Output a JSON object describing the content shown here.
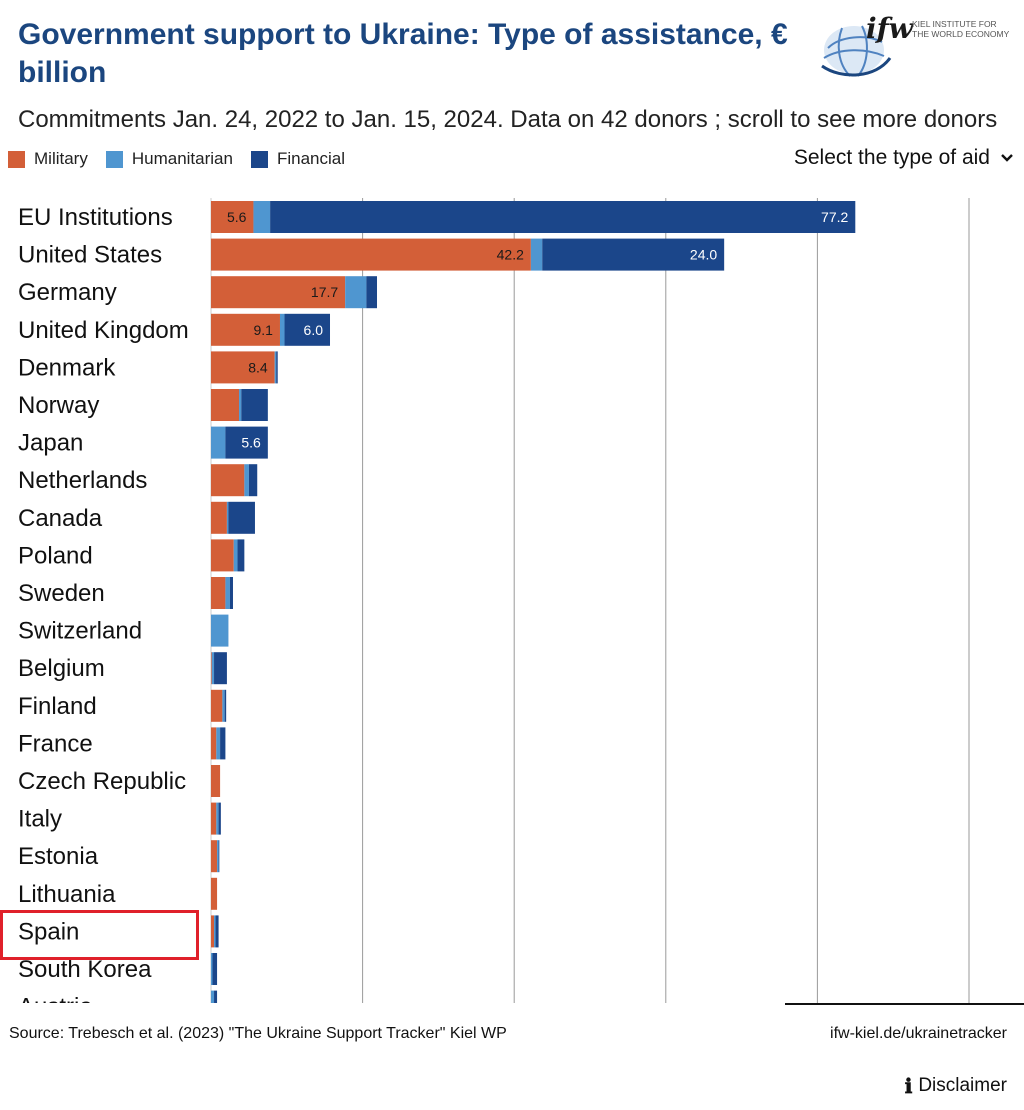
{
  "header": {
    "title": "Government support to Ukraine:  Type of assistance, € billion",
    "subtitle": "Commitments Jan. 24, 2022 to Jan. 15, 2024. Data on 42 donors ; scroll to see more donors"
  },
  "logo": {
    "mark": "ifw",
    "line1": "KIEL INSTITUTE FOR",
    "line2": "THE WORLD ECONOMY",
    "icon": "globe-icon"
  },
  "legend": [
    {
      "label": "Military",
      "color": "#d35f38"
    },
    {
      "label": "Humanitarian",
      "color": "#4f96d0"
    },
    {
      "label": "Financial",
      "color": "#1b468a"
    }
  ],
  "selector": {
    "label": "Select the type of aid",
    "icon": "chevron-down-icon"
  },
  "highlighted_country": "Spain",
  "chart_data": {
    "type": "bar",
    "orientation": "horizontal",
    "stacked": true,
    "categories": [
      "EU Institutions",
      "United States",
      "Germany",
      "United Kingdom",
      "Denmark",
      "Norway",
      "Japan",
      "Netherlands",
      "Canada",
      "Poland",
      "Sweden",
      "Switzerland",
      "Belgium",
      "Finland",
      "France",
      "Czech Republic",
      "Italy",
      "Estonia",
      "Lithuania",
      "Spain",
      "South Korea",
      "Austria"
    ],
    "series": [
      {
        "name": "Military",
        "color": "#d35f38",
        "values": [
          5.6,
          42.2,
          17.7,
          9.1,
          8.4,
          3.7,
          0.0,
          4.4,
          2.1,
          3.0,
          1.9,
          0.0,
          0.1,
          1.5,
          0.7,
          1.2,
          0.7,
          0.8,
          0.8,
          0.4,
          0.0,
          0.0
        ],
        "labels": [
          "5.6",
          "42.2",
          "17.7",
          "9.1",
          "8.4",
          "",
          "",
          "",
          "",
          "",
          "",
          "",
          "",
          "",
          "",
          "",
          "",
          "",
          "",
          "",
          "",
          ""
        ]
      },
      {
        "name": "Humanitarian",
        "color": "#4f96d0",
        "values": [
          2.2,
          1.5,
          2.8,
          0.6,
          0.2,
          0.3,
          1.9,
          0.6,
          0.2,
          0.5,
          0.6,
          2.3,
          0.3,
          0.3,
          0.5,
          0.0,
          0.3,
          0.2,
          0.0,
          0.2,
          0.2,
          0.4
        ],
        "labels": [
          "",
          "",
          "",
          "",
          "",
          "",
          "",
          "",
          "",
          "",
          "",
          "",
          "",
          "",
          "",
          "",
          "",
          "",
          "",
          "",
          "",
          ""
        ]
      },
      {
        "name": "Financial",
        "color": "#1b468a",
        "values": [
          77.2,
          24.0,
          1.4,
          6.0,
          0.2,
          3.5,
          5.6,
          1.1,
          3.5,
          0.9,
          0.4,
          0.0,
          1.7,
          0.2,
          0.7,
          0.0,
          0.3,
          0.1,
          0.0,
          0.4,
          0.6,
          0.4
        ],
        "labels": [
          "77.2",
          "24.0",
          "",
          "6.0",
          "",
          "",
          "5.6",
          "",
          "",
          "",
          "",
          "",
          "",
          "",
          "",
          "",
          "",
          "",
          "",
          "",
          "",
          ""
        ]
      }
    ],
    "xlim": [
      0,
      100
    ],
    "grid": true,
    "legend": "top-left"
  },
  "footer": {
    "source": "Source: Trebesch et al. (2023) \"The Ukraine Support Tracker\" Kiel WP",
    "link": "ifw-kiel.de/ukrainetracker",
    "disclaimer": "Disclaimer",
    "disclaimer_icon": "info-icon"
  }
}
